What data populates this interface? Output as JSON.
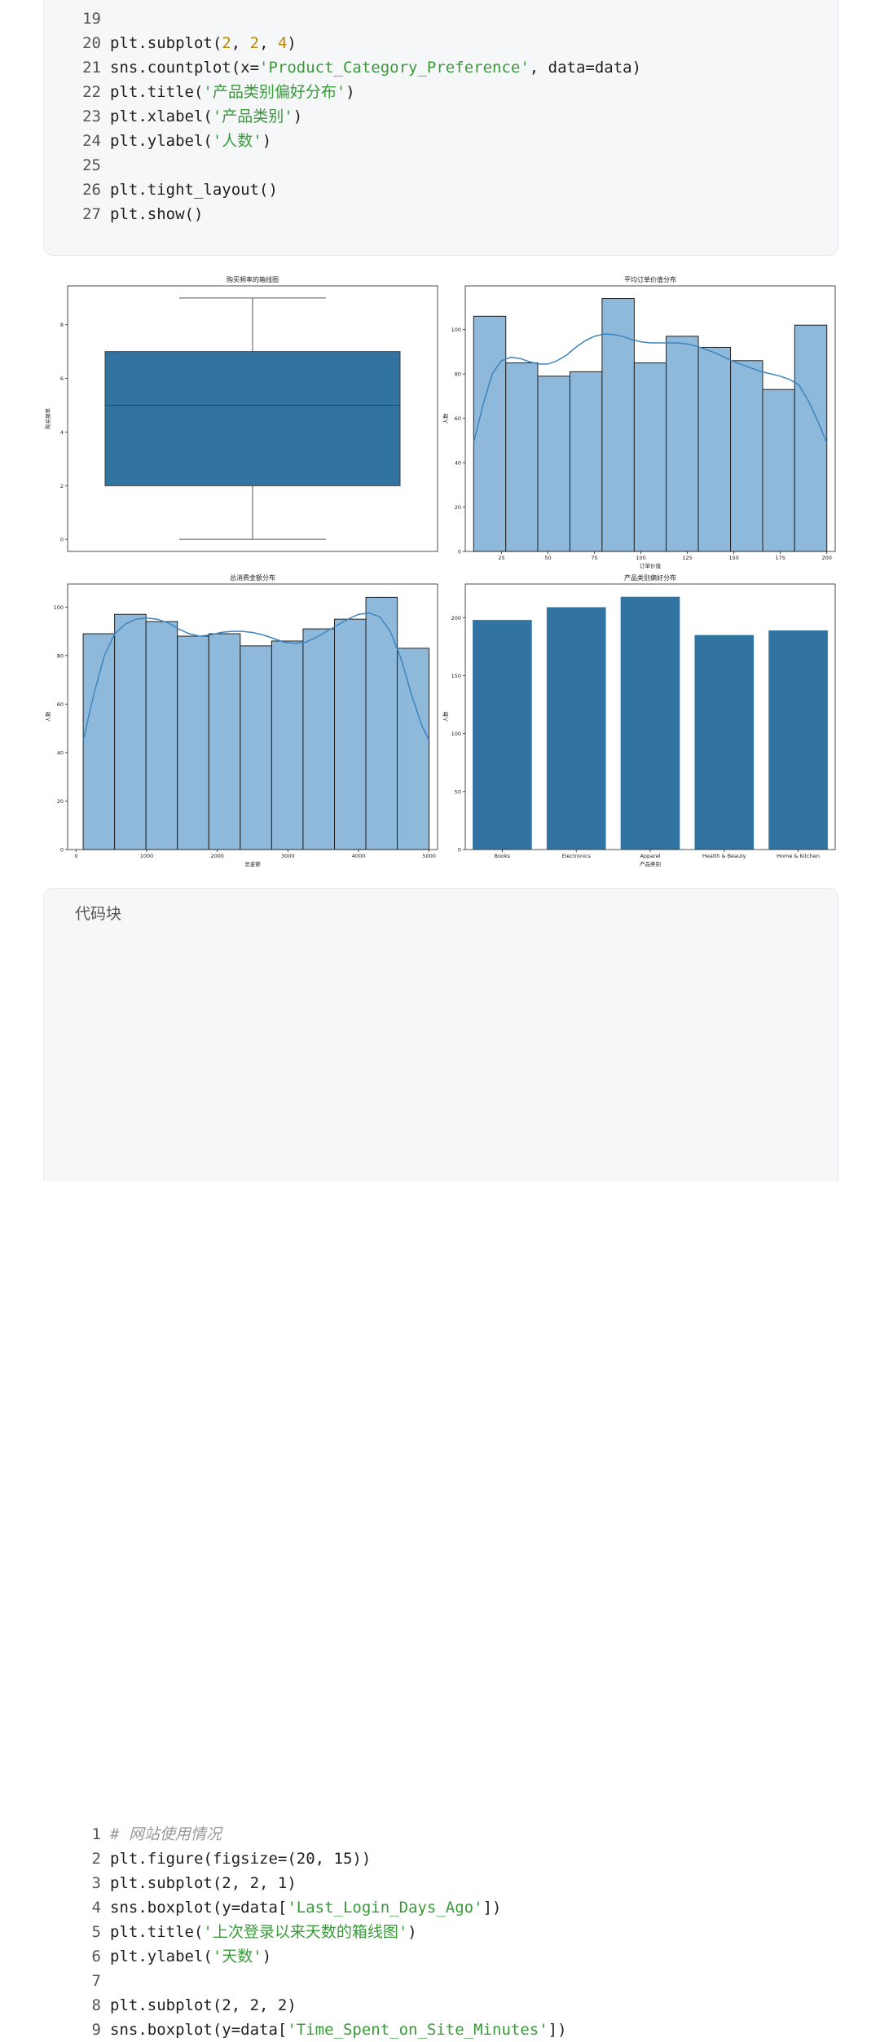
{
  "code_top": {
    "lines": [
      {
        "num": "19",
        "tokens": []
      },
      {
        "num": "20",
        "tokens": [
          {
            "t": "plt.subplot(",
            "c": ""
          },
          {
            "t": "2",
            "c": "num"
          },
          {
            "t": ", ",
            "c": ""
          },
          {
            "t": "2",
            "c": "num"
          },
          {
            "t": ", ",
            "c": ""
          },
          {
            "t": "4",
            "c": "num"
          },
          {
            "t": ")",
            "c": ""
          }
        ]
      },
      {
        "num": "21",
        "tokens": [
          {
            "t": "sns.countplot(x=",
            "c": ""
          },
          {
            "t": "'Product_Category_Preference'",
            "c": "str"
          },
          {
            "t": ", data=data)",
            "c": ""
          }
        ]
      },
      {
        "num": "22",
        "tokens": [
          {
            "t": "plt.title(",
            "c": ""
          },
          {
            "t": "'产品类别偏好分布'",
            "c": "str"
          },
          {
            "t": ")",
            "c": ""
          }
        ]
      },
      {
        "num": "23",
        "tokens": [
          {
            "t": "plt.xlabel(",
            "c": ""
          },
          {
            "t": "'产品类别'",
            "c": "str"
          },
          {
            "t": ")",
            "c": ""
          }
        ]
      },
      {
        "num": "24",
        "tokens": [
          {
            "t": "plt.ylabel(",
            "c": ""
          },
          {
            "t": "'人数'",
            "c": "str"
          },
          {
            "t": ")",
            "c": ""
          }
        ]
      },
      {
        "num": "25",
        "tokens": []
      },
      {
        "num": "26",
        "tokens": [
          {
            "t": "plt.tight_layout()",
            "c": ""
          }
        ]
      },
      {
        "num": "27",
        "tokens": [
          {
            "t": "plt.show()",
            "c": ""
          }
        ]
      }
    ]
  },
  "code_bottom": {
    "title": "代码块",
    "lines": [
      {
        "num": "1",
        "tokens": [
          {
            "t": "# 网站使用情况",
            "c": "cmt"
          }
        ]
      },
      {
        "num": "2",
        "tokens": [
          {
            "t": "plt.figure(figsize=(20, 15))",
            "c": ""
          }
        ]
      },
      {
        "num": "3",
        "tokens": [
          {
            "t": "plt.subplot(2, 2, 1)",
            "c": ""
          }
        ]
      },
      {
        "num": "4",
        "tokens": [
          {
            "t": "sns.boxplot(y=data[",
            "c": ""
          },
          {
            "t": "'Last_Login_Days_Ago'",
            "c": "str"
          },
          {
            "t": "])",
            "c": ""
          }
        ]
      },
      {
        "num": "5",
        "tokens": [
          {
            "t": "plt.title(",
            "c": ""
          },
          {
            "t": "'上次登录以来天数的箱线图'",
            "c": "str"
          },
          {
            "t": ")",
            "c": ""
          }
        ]
      },
      {
        "num": "6",
        "tokens": [
          {
            "t": "plt.ylabel(",
            "c": ""
          },
          {
            "t": "'天数'",
            "c": "str"
          },
          {
            "t": ")",
            "c": ""
          }
        ]
      },
      {
        "num": "7",
        "tokens": []
      },
      {
        "num": "8",
        "tokens": [
          {
            "t": "plt.subplot(2, 2, 2)",
            "c": ""
          }
        ]
      },
      {
        "num": "9",
        "tokens": [
          {
            "t": "sns.boxplot(y=data[",
            "c": ""
          },
          {
            "t": "'Time_Spent_on_Site_Minutes'",
            "c": "str"
          },
          {
            "t": "])",
            "c": ""
          }
        ]
      }
    ]
  },
  "colors": {
    "box": "#3274a1",
    "hist_fill": "#8fb9da",
    "kde_line": "#3d85bf",
    "edge": "#222222"
  },
  "chart_data": [
    {
      "type": "box",
      "title": "购买频率的箱线图",
      "xlabel": "",
      "ylabel": "购买频率",
      "ylim": [
        -0.45,
        9.45
      ],
      "yticks": [
        0,
        2,
        4,
        6,
        8
      ],
      "stats": {
        "min": 0,
        "q1": 2,
        "median": 5,
        "q3": 7,
        "max": 9
      }
    },
    {
      "type": "bar",
      "subtype": "histogram_kde",
      "title": "平均订单价值分布",
      "xlabel": "订单价值",
      "ylabel": "人数",
      "xlim": [
        5.5,
        204.5
      ],
      "ylim": [
        0,
        119.7
      ],
      "xticks": [
        25,
        50,
        75,
        100,
        125,
        150,
        175,
        200
      ],
      "yticks": [
        0,
        20,
        40,
        60,
        80,
        100
      ],
      "bin_edges": [
        10,
        27.3,
        44.5,
        61.8,
        79.1,
        96.4,
        113.6,
        130.9,
        148.2,
        165.5,
        182.7,
        200
      ],
      "values": [
        106,
        85,
        79,
        81,
        114,
        85,
        97,
        92,
        86,
        73,
        102
      ],
      "kde": {
        "x": [
          10,
          15,
          20,
          25,
          30,
          35,
          40,
          45,
          50,
          55,
          60,
          65,
          70,
          75,
          80,
          85,
          90,
          95,
          100,
          105,
          110,
          115,
          120,
          125,
          130,
          135,
          140,
          145,
          150,
          155,
          160,
          165,
          170,
          175,
          180,
          185,
          190,
          195,
          200
        ],
        "y": [
          49,
          66,
          80,
          86,
          87.5,
          87,
          85.5,
          84.5,
          84.5,
          86,
          88.5,
          92,
          95,
          97,
          98,
          97.8,
          97,
          95.5,
          94.5,
          94,
          94,
          94,
          94,
          93.5,
          92.5,
          91,
          89.5,
          87.5,
          85.5,
          84,
          82.5,
          81,
          80,
          79,
          77.5,
          75,
          68,
          59,
          49
        ]
      }
    },
    {
      "type": "bar",
      "subtype": "histogram_kde",
      "title": "总消费金额分布",
      "xlabel": "总金额",
      "ylabel": "人数",
      "xlim": [
        -120,
        5120
      ],
      "ylim": [
        0,
        109.5
      ],
      "xticks": [
        0,
        1000,
        2000,
        3000,
        4000,
        5000
      ],
      "yticks": [
        0,
        20,
        40,
        60,
        80,
        100
      ],
      "bin_edges": [
        100,
        545,
        990,
        1435,
        1880,
        2325,
        2770,
        3215,
        3660,
        4105,
        4550,
        5000
      ],
      "values": [
        89,
        97,
        94,
        88,
        89,
        84,
        86,
        91,
        95,
        104,
        83
      ],
      "kde": {
        "x": [
          100,
          250,
          400,
          550,
          700,
          850,
          1000,
          1150,
          1300,
          1450,
          1600,
          1750,
          1900,
          2050,
          2200,
          2350,
          2500,
          2650,
          2800,
          2950,
          3100,
          3250,
          3400,
          3550,
          3700,
          3850,
          4000,
          4150,
          4300,
          4450,
          4600,
          4750,
          4900,
          5000
        ],
        "y": [
          45,
          64,
          80,
          89,
          93,
          95,
          95.5,
          95,
          93.5,
          91,
          89,
          88,
          88.5,
          89.5,
          90,
          90,
          89.5,
          88.5,
          87,
          85.5,
          85,
          85.5,
          87.5,
          90,
          92.5,
          95,
          97,
          97.5,
          96,
          90,
          79,
          64,
          51,
          45
        ]
      }
    },
    {
      "type": "bar",
      "title": "产品类别偏好分布",
      "xlabel": "产品类别",
      "ylabel": "人数",
      "ylim": [
        0,
        229
      ],
      "yticks": [
        0,
        50,
        100,
        150,
        200
      ],
      "categories": [
        "Books",
        "Electronics",
        "Apparel",
        "Health & Beauty",
        "Home & Kitchen"
      ],
      "values": [
        198,
        209,
        218,
        185,
        189
      ]
    }
  ]
}
